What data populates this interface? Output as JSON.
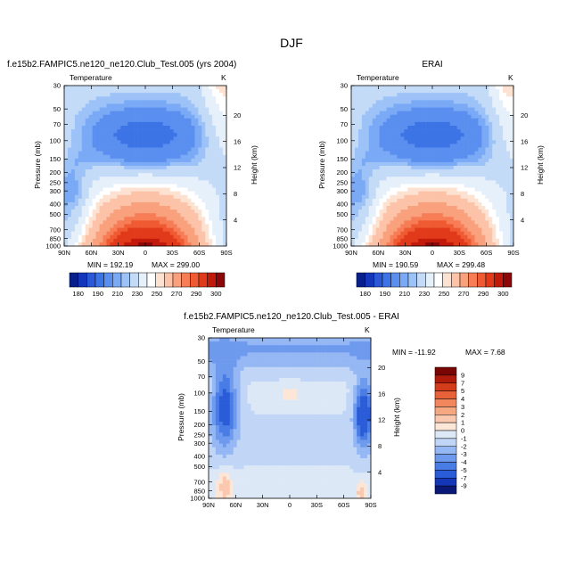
{
  "figure": {
    "title": "DJF"
  },
  "palette": {
    "abs": [
      "#08208c",
      "#1436b8",
      "#2a58d6",
      "#3c74e6",
      "#5a8ff0",
      "#7aa9f5",
      "#9cc2f8",
      "#c4dbf8",
      "#e6f0fb",
      "#ffffff",
      "#fde2d2",
      "#fcc3a8",
      "#f9a07c",
      "#f67d56",
      "#f05a33",
      "#e03a1a",
      "#c21a0a",
      "#8c0808"
    ],
    "diff": [
      "#0a1878",
      "#1437b8",
      "#2a5cd8",
      "#4a7ce6",
      "#6e9aee",
      "#95b7f3",
      "#c1d6f6",
      "#dde8f7",
      "#fbe6d8",
      "#f9c8ae",
      "#f6a883",
      "#f2865d",
      "#e86239",
      "#d33d1b",
      "#b01c0b",
      "#7a0505"
    ]
  },
  "chart_data": [
    {
      "type": "heatmap",
      "title": "f.e15b2.FAMPIC5.ne120_ne120.Club_Test.005 (yrs 2004)",
      "variable": "Temperature",
      "units": "K",
      "ylabel": "Pressure (mb)",
      "ylabel_right": "Height (km)",
      "x_ticks": [
        "90N",
        "60N",
        "30N",
        "0",
        "30S",
        "60S",
        "90S"
      ],
      "y_ticks": [
        "30",
        "50",
        "70",
        "100",
        "150",
        "200",
        "250",
        "300",
        "400",
        "500",
        "700",
        "850",
        "1000"
      ],
      "y_ticks_right": [
        "20",
        "16",
        "12",
        "8",
        "4"
      ],
      "min_label": "MIN = 192.19",
      "max_label": "MAX = 299.00",
      "colorbar_labels": [
        "180",
        "190",
        "210",
        "230",
        "250",
        "270",
        "290",
        "300"
      ]
    },
    {
      "type": "heatmap",
      "title": "ERAI",
      "variable": "Temperature",
      "units": "K",
      "ylabel": "Pressure (mb)",
      "ylabel_right": "Height (km)",
      "x_ticks": [
        "90N",
        "60N",
        "30N",
        "0",
        "30S",
        "60S",
        "90S"
      ],
      "y_ticks": [
        "30",
        "50",
        "70",
        "100",
        "150",
        "200",
        "250",
        "300",
        "400",
        "500",
        "700",
        "850",
        "1000"
      ],
      "y_ticks_right": [
        "20",
        "16",
        "12",
        "8",
        "4"
      ],
      "min_label": "MIN = 190.59",
      "max_label": "MAX = 299.48",
      "colorbar_labels": [
        "180",
        "190",
        "210",
        "230",
        "250",
        "270",
        "290",
        "300"
      ]
    },
    {
      "type": "heatmap",
      "title": "f.e15b2.FAMPIC5.ne120_ne120.Club_Test.005 - ERAI",
      "variable": "Temperature",
      "units": "K",
      "ylabel": "Pressure (mb)",
      "ylabel_right": "Height (km)",
      "x_ticks": [
        "90N",
        "60N",
        "30N",
        "0",
        "30S",
        "60S",
        "90S"
      ],
      "y_ticks": [
        "30",
        "50",
        "70",
        "100",
        "150",
        "200",
        "250",
        "300",
        "400",
        "500",
        "700",
        "850",
        "1000"
      ],
      "y_ticks_right": [
        "20",
        "16",
        "12",
        "8",
        "4"
      ],
      "min_label": "MIN = -11.92",
      "max_label": "MAX = 7.68",
      "colorbar_labels": [
        "9",
        "7",
        "5",
        "4",
        "3",
        "2",
        "1",
        "0",
        "-1",
        "-2",
        "-3",
        "-4",
        "-5",
        "-7",
        "-9"
      ]
    }
  ]
}
